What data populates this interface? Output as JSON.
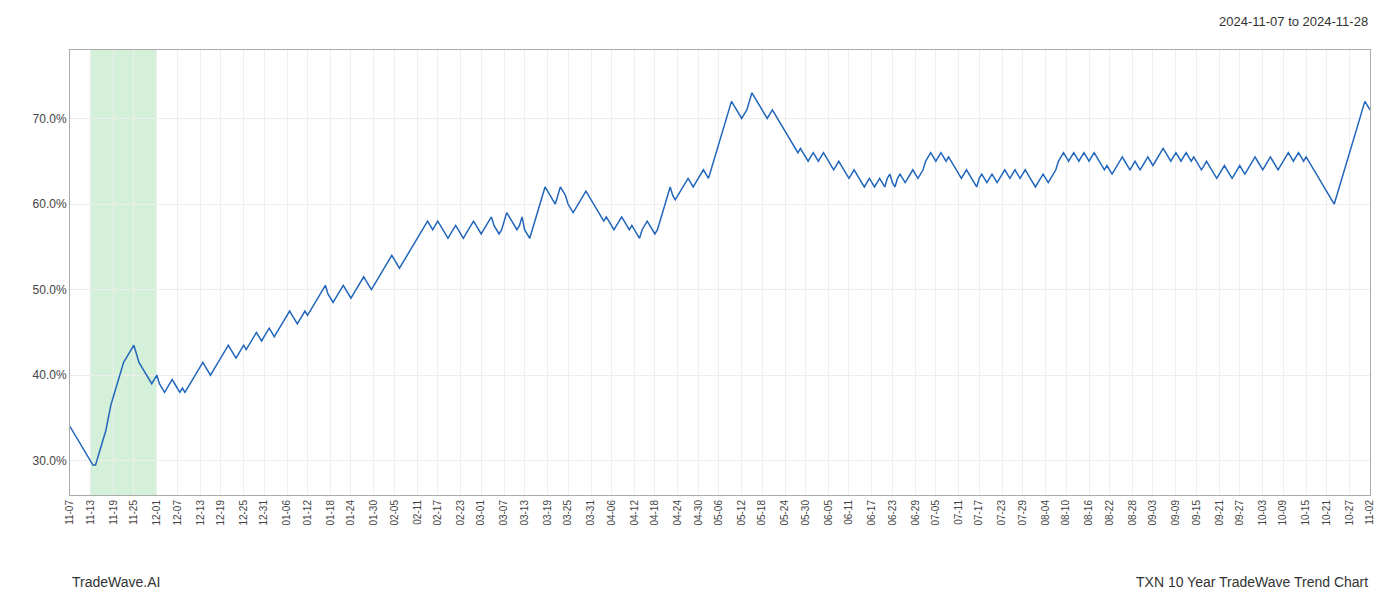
{
  "chart_data": {
    "type": "line",
    "color": "#2266bb",
    "grid": true,
    "annotations": [
      "2024-11-07 to 2024-11-28",
      "TradeWave.AI",
      "TXN 10 Year TradeWave Trend Chart"
    ],
    "highlight": {
      "from": "11-13",
      "to": "12-01",
      "color": "#d4f0d8"
    },
    "ylim": [
      26,
      78
    ],
    "yticks": [
      {
        "value": 30,
        "label": "30.0%"
      },
      {
        "value": 40,
        "label": "40.0%"
      },
      {
        "value": 50,
        "label": "50.0%"
      },
      {
        "value": 60,
        "label": "60.0%"
      },
      {
        "value": 70,
        "label": "70.0%"
      }
    ],
    "categories": [
      "11-07",
      null,
      null,
      null,
      null,
      null,
      null,
      null,
      "11-13",
      null,
      null,
      null,
      null,
      null,
      null,
      null,
      null,
      "11-19",
      null,
      null,
      null,
      null,
      null,
      null,
      null,
      "11-25",
      null,
      null,
      null,
      null,
      null,
      null,
      null,
      null,
      "12-01",
      null,
      null,
      null,
      null,
      null,
      null,
      null,
      "12-07",
      null,
      null,
      null,
      null,
      null,
      null,
      null,
      null,
      "12-13",
      null,
      null,
      null,
      null,
      null,
      null,
      null,
      "12-19",
      null,
      null,
      null,
      null,
      null,
      null,
      null,
      null,
      "12-25",
      null,
      null,
      null,
      null,
      null,
      null,
      null,
      "12-31",
      null,
      null,
      null,
      null,
      null,
      null,
      null,
      null,
      "01-06",
      null,
      null,
      null,
      null,
      null,
      null,
      null,
      "01-12",
      null,
      null,
      null,
      null,
      null,
      null,
      null,
      null,
      "01-18",
      null,
      null,
      null,
      null,
      null,
      null,
      null,
      "01-24",
      null,
      null,
      null,
      null,
      null,
      null,
      null,
      null,
      "01-30",
      null,
      null,
      null,
      null,
      null,
      null,
      null,
      "02-05",
      null,
      null,
      null,
      null,
      null,
      null,
      null,
      null,
      "02-11",
      null,
      null,
      null,
      null,
      null,
      null,
      null,
      "02-17",
      null,
      null,
      null,
      null,
      null,
      null,
      null,
      null,
      "02-23",
      null,
      null,
      null,
      null,
      null,
      null,
      null,
      "03-01",
      null,
      null,
      null,
      null,
      null,
      null,
      null,
      null,
      "03-07",
      null,
      null,
      null,
      null,
      null,
      null,
      null,
      "03-13",
      null,
      null,
      null,
      null,
      null,
      null,
      null,
      null,
      "03-19",
      null,
      null,
      null,
      null,
      null,
      null,
      null,
      "03-25",
      null,
      null,
      null,
      null,
      null,
      null,
      null,
      null,
      "03-31",
      null,
      null,
      null,
      null,
      null,
      null,
      null,
      "04-06",
      null,
      null,
      null,
      null,
      null,
      null,
      null,
      null,
      "04-12",
      null,
      null,
      null,
      null,
      null,
      null,
      null,
      "04-18",
      null,
      null,
      null,
      null,
      null,
      null,
      null,
      null,
      "04-24",
      null,
      null,
      null,
      null,
      null,
      null,
      null,
      "04-30",
      null,
      null,
      null,
      null,
      null,
      null,
      null,
      "05-06",
      null,
      null,
      null,
      null,
      null,
      null,
      null,
      null,
      "05-12",
      null,
      null,
      null,
      null,
      null,
      null,
      null,
      "05-18",
      null,
      null,
      null,
      null,
      null,
      null,
      null,
      null,
      "05-24",
      null,
      null,
      null,
      null,
      null,
      null,
      null,
      "05-30",
      null,
      null,
      null,
      null,
      null,
      null,
      null,
      null,
      "06-05",
      null,
      null,
      null,
      null,
      null,
      null,
      null,
      "06-11",
      null,
      null,
      null,
      null,
      null,
      null,
      null,
      null,
      "06-17",
      null,
      null,
      null,
      null,
      null,
      null,
      null,
      "06-23",
      null,
      null,
      null,
      null,
      null,
      null,
      null,
      null,
      "06-29",
      null,
      null,
      null,
      null,
      null,
      null,
      null,
      "07-05",
      null,
      null,
      null,
      null,
      null,
      null,
      null,
      null,
      "07-11",
      null,
      null,
      null,
      null,
      null,
      null,
      null,
      "07-17",
      null,
      null,
      null,
      null,
      null,
      null,
      null,
      null,
      "07-23",
      null,
      null,
      null,
      null,
      null,
      null,
      null,
      "07-29",
      null,
      null,
      null,
      null,
      null,
      null,
      null,
      null,
      "08-04",
      null,
      null,
      null,
      null,
      null,
      null,
      null,
      "08-10",
      null,
      null,
      null,
      null,
      null,
      null,
      null,
      null,
      "08-16",
      null,
      null,
      null,
      null,
      null,
      null,
      null,
      "08-22",
      null,
      null,
      null,
      null,
      null,
      null,
      null,
      null,
      "08-28",
      null,
      null,
      null,
      null,
      null,
      null,
      null,
      "09-03",
      null,
      null,
      null,
      null,
      null,
      null,
      null,
      null,
      "09-09",
      null,
      null,
      null,
      null,
      null,
      null,
      null,
      "09-15",
      null,
      null,
      null,
      null,
      null,
      null,
      null,
      null,
      "09-21",
      null,
      null,
      null,
      null,
      null,
      null,
      null,
      "09-27",
      null,
      null,
      null,
      null,
      null,
      null,
      null,
      null,
      "10-03",
      null,
      null,
      null,
      null,
      null,
      null,
      null,
      "10-09",
      null,
      null,
      null,
      null,
      null,
      null,
      null,
      null,
      "10-15",
      null,
      null,
      null,
      null,
      null,
      null,
      null,
      "10-21",
      null,
      null,
      null,
      null,
      null,
      null,
      null,
      null,
      "10-27",
      null,
      null,
      null,
      null,
      null,
      null,
      null,
      "11-02"
    ],
    "values": [
      34.0,
      33.5,
      33.0,
      32.5,
      32.0,
      31.5,
      31.0,
      30.5,
      30.0,
      29.5,
      29.5,
      30.5,
      31.5,
      32.5,
      33.5,
      35.0,
      36.5,
      37.5,
      38.5,
      39.5,
      40.5,
      41.5,
      42.0,
      42.5,
      43.0,
      43.5,
      42.5,
      41.5,
      41.0,
      40.5,
      40.0,
      39.5,
      39.0,
      39.5,
      40.0,
      39.0,
      38.5,
      38.0,
      38.5,
      39.0,
      39.5,
      39.0,
      38.5,
      38.0,
      38.5,
      38.0,
      38.5,
      39.0,
      39.5,
      40.0,
      40.5,
      41.0,
      41.5,
      41.0,
      40.5,
      40.0,
      40.5,
      41.0,
      41.5,
      42.0,
      42.5,
      43.0,
      43.5,
      43.0,
      42.5,
      42.0,
      42.5,
      43.0,
      43.5,
      43.0,
      43.5,
      44.0,
      44.5,
      45.0,
      44.5,
      44.0,
      44.5,
      45.0,
      45.5,
      45.0,
      44.5,
      45.0,
      45.5,
      46.0,
      46.5,
      47.0,
      47.5,
      47.0,
      46.5,
      46.0,
      46.5,
      47.0,
      47.5,
      47.0,
      47.5,
      48.0,
      48.5,
      49.0,
      49.5,
      50.0,
      50.5,
      49.5,
      49.0,
      48.5,
      49.0,
      49.5,
      50.0,
      50.5,
      50.0,
      49.5,
      49.0,
      49.5,
      50.0,
      50.5,
      51.0,
      51.5,
      51.0,
      50.5,
      50.0,
      50.5,
      51.0,
      51.5,
      52.0,
      52.5,
      53.0,
      53.5,
      54.0,
      53.5,
      53.0,
      52.5,
      53.0,
      53.5,
      54.0,
      54.5,
      55.0,
      55.5,
      56.0,
      56.5,
      57.0,
      57.5,
      58.0,
      57.5,
      57.0,
      57.5,
      58.0,
      57.5,
      57.0,
      56.5,
      56.0,
      56.5,
      57.0,
      57.5,
      57.0,
      56.5,
      56.0,
      56.5,
      57.0,
      57.5,
      58.0,
      57.5,
      57.0,
      56.5,
      57.0,
      57.5,
      58.0,
      58.5,
      57.5,
      57.0,
      56.5,
      57.0,
      58.0,
      59.0,
      58.5,
      58.0,
      57.5,
      57.0,
      57.5,
      58.5,
      57.0,
      56.5,
      56.0,
      57.0,
      58.0,
      59.0,
      60.0,
      61.0,
      62.0,
      61.5,
      61.0,
      60.5,
      60.0,
      61.0,
      62.0,
      61.5,
      61.0,
      60.0,
      59.5,
      59.0,
      59.5,
      60.0,
      60.5,
      61.0,
      61.5,
      61.0,
      60.5,
      60.0,
      59.5,
      59.0,
      58.5,
      58.0,
      58.5,
      58.0,
      57.5,
      57.0,
      57.5,
      58.0,
      58.5,
      58.0,
      57.5,
      57.0,
      57.5,
      57.0,
      56.5,
      56.0,
      57.0,
      57.5,
      58.0,
      57.5,
      57.0,
      56.5,
      57.0,
      58.0,
      59.0,
      60.0,
      61.0,
      62.0,
      61.0,
      60.5,
      61.0,
      61.5,
      62.0,
      62.5,
      63.0,
      62.5,
      62.0,
      62.5,
      63.0,
      63.5,
      64.0,
      63.5,
      63.0,
      64.0,
      65.0,
      66.0,
      67.0,
      68.0,
      69.0,
      70.0,
      71.0,
      72.0,
      71.5,
      71.0,
      70.5,
      70.0,
      70.5,
      71.0,
      72.0,
      73.0,
      72.5,
      72.0,
      71.5,
      71.0,
      70.5,
      70.0,
      70.5,
      71.0,
      70.5,
      70.0,
      69.5,
      69.0,
      68.5,
      68.0,
      67.5,
      67.0,
      66.5,
      66.0,
      66.5,
      66.0,
      65.5,
      65.0,
      65.5,
      66.0,
      65.5,
      65.0,
      65.5,
      66.0,
      65.5,
      65.0,
      64.5,
      64.0,
      64.5,
      65.0,
      64.5,
      64.0,
      63.5,
      63.0,
      63.5,
      64.0,
      63.5,
      63.0,
      62.5,
      62.0,
      62.5,
      63.0,
      62.5,
      62.0,
      62.5,
      63.0,
      62.5,
      62.0,
      63.0,
      63.5,
      62.5,
      62.0,
      63.0,
      63.5,
      63.0,
      62.5,
      63.0,
      63.5,
      64.0,
      63.5,
      63.0,
      63.5,
      64.0,
      65.0,
      65.5,
      66.0,
      65.5,
      65.0,
      65.5,
      66.0,
      65.5,
      65.0,
      65.5,
      65.0,
      64.5,
      64.0,
      63.5,
      63.0,
      63.5,
      64.0,
      63.5,
      63.0,
      62.5,
      62.0,
      63.0,
      63.5,
      63.0,
      62.5,
      63.0,
      63.5,
      63.0,
      62.5,
      63.0,
      63.5,
      64.0,
      63.5,
      63.0,
      63.5,
      64.0,
      63.5,
      63.0,
      63.5,
      64.0,
      63.5,
      63.0,
      62.5,
      62.0,
      62.5,
      63.0,
      63.5,
      63.0,
      62.5,
      63.0,
      63.5,
      64.0,
      65.0,
      65.5,
      66.0,
      65.5,
      65.0,
      65.5,
      66.0,
      65.5,
      65.0,
      65.5,
      66.0,
      65.5,
      65.0,
      65.5,
      66.0,
      65.5,
      65.0,
      64.5,
      64.0,
      64.5,
      64.0,
      63.5,
      64.0,
      64.5,
      65.0,
      65.5,
      65.0,
      64.5,
      64.0,
      64.5,
      65.0,
      64.5,
      64.0,
      64.5,
      65.0,
      65.5,
      65.0,
      64.5,
      65.0,
      65.5,
      66.0,
      66.5,
      66.0,
      65.5,
      65.0,
      65.5,
      66.0,
      65.5,
      65.0,
      65.5,
      66.0,
      65.5,
      65.0,
      65.5,
      65.0,
      64.5,
      64.0,
      64.5,
      65.0,
      64.5,
      64.0,
      63.5,
      63.0,
      63.5,
      64.0,
      64.5,
      64.0,
      63.5,
      63.0,
      63.5,
      64.0,
      64.5,
      64.0,
      63.5,
      64.0,
      64.5,
      65.0,
      65.5,
      65.0,
      64.5,
      64.0,
      64.5,
      65.0,
      65.5,
      65.0,
      64.5,
      64.0,
      64.5,
      65.0,
      65.5,
      66.0,
      65.5,
      65.0,
      65.5,
      66.0,
      65.5,
      65.0,
      65.5,
      65.0,
      64.5,
      64.0,
      63.5,
      63.0,
      62.5,
      62.0,
      61.5,
      61.0,
      60.5,
      60.0,
      61.0,
      62.0,
      63.0,
      64.0,
      65.0,
      66.0,
      67.0,
      68.0,
      69.0,
      70.0,
      71.0,
      72.0,
      71.5,
      71.0
    ]
  }
}
